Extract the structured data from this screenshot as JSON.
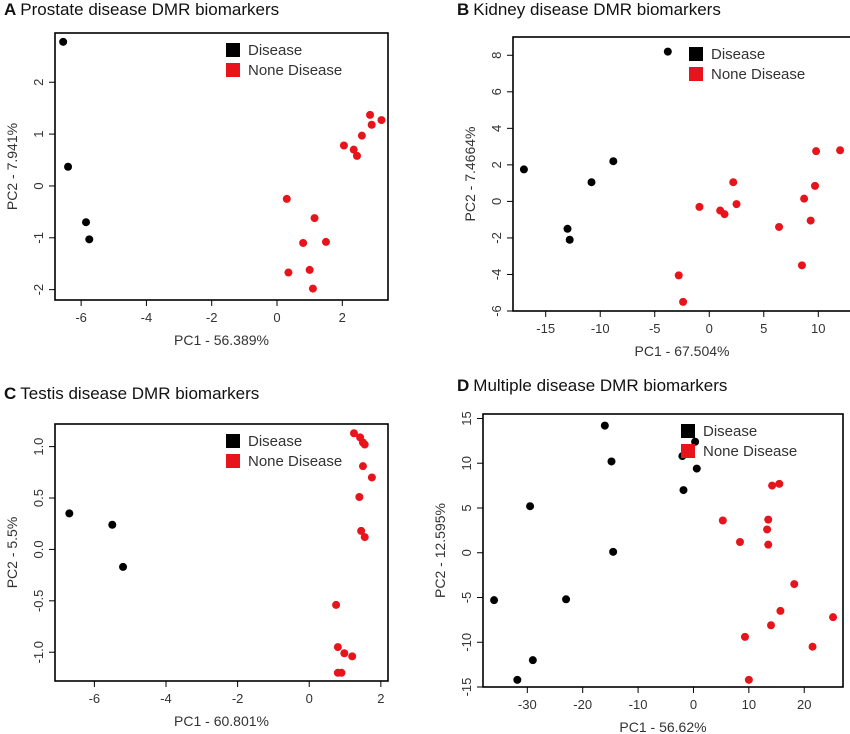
{
  "colors": {
    "disease": "#000000",
    "none_disease": "#e8141b",
    "axis": "#000000"
  },
  "chart_data": [
    {
      "type": "scatter",
      "panel_letter": "A",
      "title": "Prostate disease DMR biomarkers",
      "xlabel": "PC1 - 56.389%",
      "ylabel": "PC2 - 7.941%",
      "xlim": [
        -6.8,
        3.4
      ],
      "ylim": [
        -2.2,
        2.95
      ],
      "xticks": [
        -6,
        -4,
        -2,
        0,
        2
      ],
      "yticks": [
        -2,
        -1,
        0,
        1,
        2
      ],
      "legend_position": "top-right",
      "series": [
        {
          "name": "Disease",
          "color": "#000000",
          "points": [
            [
              -6.55,
              2.78
            ],
            [
              -6.4,
              0.37
            ],
            [
              -5.85,
              -0.7
            ],
            [
              -5.75,
              -1.03
            ]
          ]
        },
        {
          "name": "None Disease",
          "color": "#e8141b",
          "points": [
            [
              2.85,
              1.37
            ],
            [
              3.2,
              1.27
            ],
            [
              2.9,
              1.18
            ],
            [
              2.6,
              0.97
            ],
            [
              2.05,
              0.78
            ],
            [
              2.35,
              0.7
            ],
            [
              2.45,
              0.58
            ],
            [
              0.3,
              -0.25
            ],
            [
              1.15,
              -0.62
            ],
            [
              1.5,
              -1.08
            ],
            [
              0.8,
              -1.1
            ],
            [
              1.0,
              -1.62
            ],
            [
              0.35,
              -1.67
            ],
            [
              1.1,
              -1.98
            ]
          ]
        }
      ]
    },
    {
      "type": "scatter",
      "panel_letter": "B",
      "title": "Kidney disease DMR biomarkers",
      "xlabel": "PC1 - 67.504%",
      "ylabel": "PC2 - 7.4664%",
      "xlim": [
        -18,
        13
      ],
      "ylim": [
        -6,
        9
      ],
      "xticks": [
        -15,
        -10,
        -5,
        0,
        5,
        10
      ],
      "yticks": [
        -6,
        -4,
        -2,
        0,
        2,
        4,
        6,
        8
      ],
      "legend_position": "top-right",
      "series": [
        {
          "name": "Disease",
          "color": "#000000",
          "points": [
            [
              -3.8,
              8.2
            ],
            [
              -8.8,
              2.2
            ],
            [
              -17.0,
              1.75
            ],
            [
              -10.8,
              1.05
            ],
            [
              -13.0,
              -1.5
            ],
            [
              -12.8,
              -2.1
            ]
          ]
        },
        {
          "name": "None Disease",
          "color": "#e8141b",
          "points": [
            [
              12.0,
              2.8
            ],
            [
              9.8,
              2.75
            ],
            [
              2.2,
              1.05
            ],
            [
              9.7,
              0.85
            ],
            [
              8.7,
              0.15
            ],
            [
              2.5,
              -0.15
            ],
            [
              -0.9,
              -0.3
            ],
            [
              1.0,
              -0.5
            ],
            [
              1.4,
              -0.7
            ],
            [
              9.3,
              -1.05
            ],
            [
              6.4,
              -1.4
            ],
            [
              8.5,
              -3.5
            ],
            [
              -2.8,
              -4.05
            ],
            [
              -2.4,
              -5.5
            ]
          ]
        }
      ]
    },
    {
      "type": "scatter",
      "panel_letter": "C",
      "title": "Testis disease DMR biomarkers",
      "xlabel": "PC1 - 60.801%",
      "ylabel": "PC2 - 5.5%",
      "xlim": [
        -7.1,
        2.2
      ],
      "ylim": [
        -1.28,
        1.22
      ],
      "xticks": [
        -6,
        -4,
        -2,
        0,
        2
      ],
      "yticks": [
        -1.0,
        -0.5,
        0.0,
        0.5,
        1.0
      ],
      "legend_position": "top-right",
      "series": [
        {
          "name": "Disease",
          "color": "#000000",
          "points": [
            [
              -6.7,
              0.35
            ],
            [
              -5.5,
              0.24
            ],
            [
              -5.2,
              -0.17
            ]
          ]
        },
        {
          "name": "None Disease",
          "color": "#e8141b",
          "points": [
            [
              1.25,
              1.13
            ],
            [
              1.42,
              1.09
            ],
            [
              1.5,
              1.04
            ],
            [
              1.55,
              1.02
            ],
            [
              1.5,
              0.81
            ],
            [
              1.75,
              0.7
            ],
            [
              1.4,
              0.51
            ],
            [
              1.45,
              0.18
            ],
            [
              1.55,
              0.12
            ],
            [
              0.75,
              -0.54
            ],
            [
              0.8,
              -0.95
            ],
            [
              0.98,
              -1.01
            ],
            [
              1.2,
              -1.04
            ],
            [
              0.8,
              -1.2
            ],
            [
              0.9,
              -1.2
            ]
          ]
        }
      ]
    },
    {
      "type": "scatter",
      "panel_letter": "D",
      "title": "Multiple disease DMR biomarkers",
      "xlabel": "PC1 - 56.62%",
      "ylabel": "PC2 - 12.595%",
      "xlim": [
        -38,
        27
      ],
      "ylim": [
        -15,
        15.5
      ],
      "xticks": [
        -30,
        -20,
        -10,
        0,
        10,
        20
      ],
      "yticks": [
        -15,
        -10,
        -5,
        0,
        5,
        10,
        15
      ],
      "legend_position": "top-right",
      "series": [
        {
          "name": "Disease",
          "color": "#000000",
          "points": [
            [
              -16.0,
              14.2
            ],
            [
              0.3,
              12.4
            ],
            [
              -2.0,
              10.8
            ],
            [
              -14.8,
              10.2
            ],
            [
              0.6,
              9.4
            ],
            [
              -1.8,
              7.0
            ],
            [
              -29.5,
              5.2
            ],
            [
              -14.5,
              0.1
            ],
            [
              -36.0,
              -5.3
            ],
            [
              -23.0,
              -5.2
            ],
            [
              -29.0,
              -12.0
            ],
            [
              -31.8,
              -14.2
            ]
          ]
        },
        {
          "name": "None Disease",
          "color": "#e8141b",
          "points": [
            [
              15.5,
              7.7
            ],
            [
              14.2,
              7.5
            ],
            [
              5.3,
              3.6
            ],
            [
              13.5,
              3.7
            ],
            [
              13.3,
              2.6
            ],
            [
              8.4,
              1.2
            ],
            [
              13.5,
              0.9
            ],
            [
              18.2,
              -3.5
            ],
            [
              15.7,
              -6.5
            ],
            [
              25.2,
              -7.2
            ],
            [
              14.0,
              -8.1
            ],
            [
              9.3,
              -9.4
            ],
            [
              21.5,
              -10.5
            ],
            [
              10.0,
              -14.2
            ]
          ]
        }
      ]
    }
  ]
}
